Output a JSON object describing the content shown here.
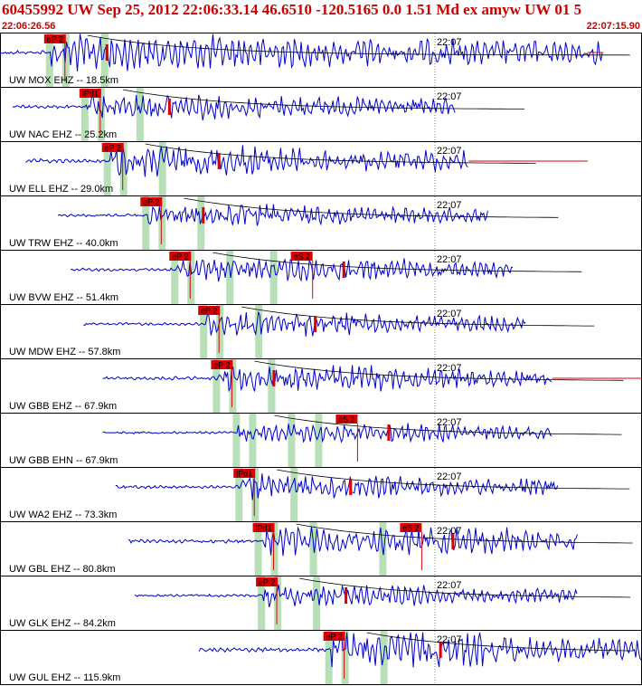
{
  "header": {
    "title": "60455992 UW Sep 25, 2012 22:06:33.14   46.6510 -120.5165  0.0 1.51 Md ex amyw UW 01   5",
    "time_start": "22:06:26.56",
    "time_end": "22:07:15.90"
  },
  "colors": {
    "waveform": "#0000cc",
    "pick": "#dd0000",
    "window": "#b8e0b8",
    "border": "#000000"
  },
  "traces": [
    {
      "label": "UW MOX EHZ -- 18.5km",
      "time_label": "22:07",
      "pick": "eP 2",
      "pick_t": 0.08,
      "s_pick": "",
      "s_t": null,
      "signal": [
        0.0,
        0.94
      ],
      "amp": 0.95
    },
    {
      "label": "UW NAC EHZ -- 25.2km",
      "time_label": "22:07",
      "pick": "iPd1",
      "pick_t": 0.135,
      "s_pick": "",
      "s_t": null,
      "signal": [
        0.02,
        0.71
      ],
      "amp": 0.7
    },
    {
      "label": "UW ELL EHZ -- 29.0km",
      "time_label": "22:07",
      "pick": "eP 2",
      "pick_t": 0.17,
      "s_pick": "",
      "s_t": null,
      "signal": [
        0.04,
        0.73
      ],
      "amp": 0.85
    },
    {
      "label": "UW TRW EHZ -- 40.0km",
      "time_label": "22:07",
      "pick": "eP 2",
      "pick_t": 0.23,
      "s_pick": "",
      "s_t": null,
      "signal": [
        0.09,
        0.76
      ],
      "amp": 0.6
    },
    {
      "label": "UW BVW EHZ -- 51.4km",
      "time_label": "22:07",
      "pick": "eP 2",
      "pick_t": 0.275,
      "s_pick": "eS 2",
      "s_t": 0.47,
      "signal": [
        0.11,
        0.8
      ],
      "amp": 0.6
    },
    {
      "label": "UW MDW EHZ -- 57.8km",
      "time_label": "22:07",
      "pick": "eP 2",
      "pick_t": 0.32,
      "s_pick": "",
      "s_t": null,
      "signal": [
        0.13,
        0.82
      ],
      "amp": 0.65
    },
    {
      "label": "UW GBB EHZ -- 67.9km",
      "time_label": "22:07",
      "pick": "eP 2",
      "pick_t": 0.34,
      "s_pick": "",
      "s_t": null,
      "signal": [
        0.16,
        0.86
      ],
      "amp": 0.7
    },
    {
      "label": "UW GBB EHN -- 67.9km",
      "time_label": "22:07",
      "pick": "",
      "pick_t": null,
      "s_pick": "eS 2",
      "s_t": 0.54,
      "signal": [
        0.16,
        0.86
      ],
      "amp": 0.5
    },
    {
      "label": "UW WA2 EHZ -- 73.3km",
      "time_label": "22:07",
      "pick": "iPd1",
      "pick_t": 0.375,
      "s_pick": "",
      "s_t": null,
      "signal": [
        0.18,
        0.87
      ],
      "amp": 0.65
    },
    {
      "label": "UW GBL EHZ -- 80.8km",
      "time_label": "22:07",
      "pick": "iPd1",
      "pick_t": 0.405,
      "s_pick": "eS 2",
      "s_t": 0.64,
      "signal": [
        0.2,
        0.9
      ],
      "amp": 0.75
    },
    {
      "label": "UW GLK EHZ -- 84.2km",
      "time_label": "22:07",
      "pick": "eP 2",
      "pick_t": 0.41,
      "s_pick": "",
      "s_t": null,
      "signal": [
        0.21,
        0.9
      ],
      "amp": 0.55
    },
    {
      "label": "UW GUL EHZ -- 115.9km",
      "time_label": "22:07",
      "pick": "eP 2",
      "pick_t": 0.515,
      "s_pick": "",
      "s_t": null,
      "signal": [
        0.31,
        1.0
      ],
      "amp": 0.9
    }
  ]
}
